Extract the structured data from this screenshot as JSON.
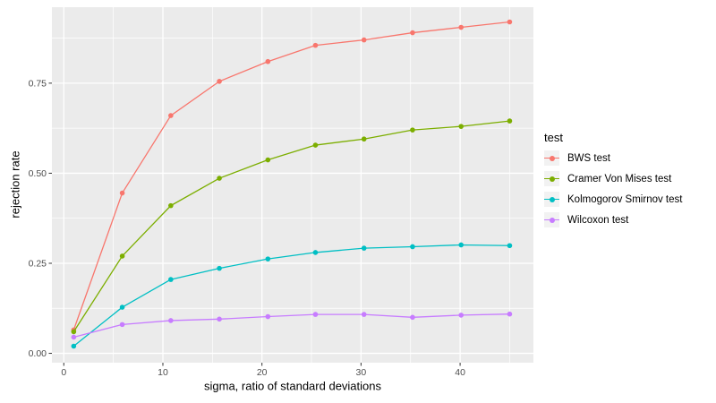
{
  "figure": {
    "background": "#FFFFFF",
    "panel_background": "#EBEBEB",
    "grid_color": "#FFFFFF",
    "tick_color": "#333333",
    "axis_text_color": "#4D4D4D",
    "title_text_color": "#000000",
    "legend_key_background": "#F2F2F2"
  },
  "legend": {
    "title": "test",
    "position": "right"
  },
  "chart_data": {
    "type": "line",
    "title": "",
    "xlabel": "sigma, ratio of standard deviations",
    "ylabel": "rejection rate",
    "x": [
      1,
      5.9,
      10.8,
      15.7,
      20.6,
      25.4,
      30.3,
      35.2,
      40.1,
      45
    ],
    "series": [
      {
        "name": "BWS test",
        "color": "#F8766D",
        "values": [
          0.065,
          0.445,
          0.66,
          0.755,
          0.81,
          0.855,
          0.87,
          0.89,
          0.905,
          0.92
        ]
      },
      {
        "name": "Cramer Von Mises test",
        "color": "#7CAE00",
        "values": [
          0.06,
          0.27,
          0.41,
          0.486,
          0.537,
          0.578,
          0.595,
          0.62,
          0.63,
          0.645
        ]
      },
      {
        "name": "Kolmogorov Smirnov test",
        "color": "#00BFC4",
        "values": [
          0.02,
          0.128,
          0.205,
          0.236,
          0.262,
          0.28,
          0.292,
          0.296,
          0.301,
          0.299
        ]
      },
      {
        "name": "Wilcoxon test",
        "color": "#C77CFF",
        "values": [
          0.045,
          0.08,
          0.091,
          0.095,
          0.102,
          0.108,
          0.108,
          0.1,
          0.106,
          0.109
        ]
      }
    ],
    "x_ticks": {
      "values": [
        0,
        10,
        20,
        30,
        40
      ],
      "labels": [
        "0",
        "10",
        "20",
        "30",
        "40"
      ],
      "minor": [
        5,
        15,
        25,
        35,
        45
      ]
    },
    "y_ticks": {
      "values": [
        0,
        0.25,
        0.5,
        0.75
      ],
      "labels": [
        "0.00",
        "0.25",
        "0.50",
        "0.75"
      ],
      "minor": [
        0.125,
        0.375,
        0.625,
        0.875
      ]
    },
    "xlim": [
      -1.2,
      47.4
    ],
    "ylim": [
      -0.026,
      0.961
    ],
    "grid": true,
    "legend_position": "right"
  }
}
